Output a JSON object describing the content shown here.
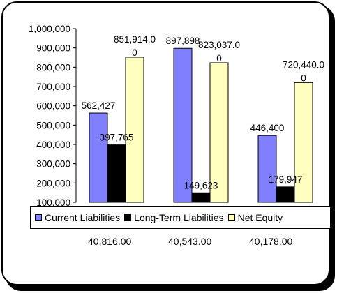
{
  "chart_data": {
    "type": "bar",
    "categories": [
      "40,816.00",
      "40,543.00",
      "40,178.00"
    ],
    "y_tick_labels": [
      "100,000",
      "200,000",
      "300,000",
      "400,000",
      "500,000",
      "600,000",
      "700,000",
      "800,000",
      "900,000",
      "1,000,000"
    ],
    "ylim": [
      100000,
      1000000
    ],
    "series": [
      {
        "name": "Current Liabilities",
        "color": "#8080ff",
        "values": [
          562427,
          897898,
          446400
        ],
        "labels": [
          "562,427",
          "897,898",
          "446,400"
        ]
      },
      {
        "name": "Long-Term Liabilities",
        "color": "#000000",
        "values": [
          397765,
          149623,
          179947
        ],
        "labels": [
          "397,765",
          "149,623",
          "179,947"
        ]
      },
      {
        "name": "Net Equity",
        "color": "#ffffc0",
        "values": [
          851914,
          823037,
          720440
        ],
        "labels": [
          "851,914.0\n0",
          "823,037.0\n0",
          "720,440.0\n0"
        ]
      }
    ],
    "legend_position": "bottom",
    "grid": false
  }
}
